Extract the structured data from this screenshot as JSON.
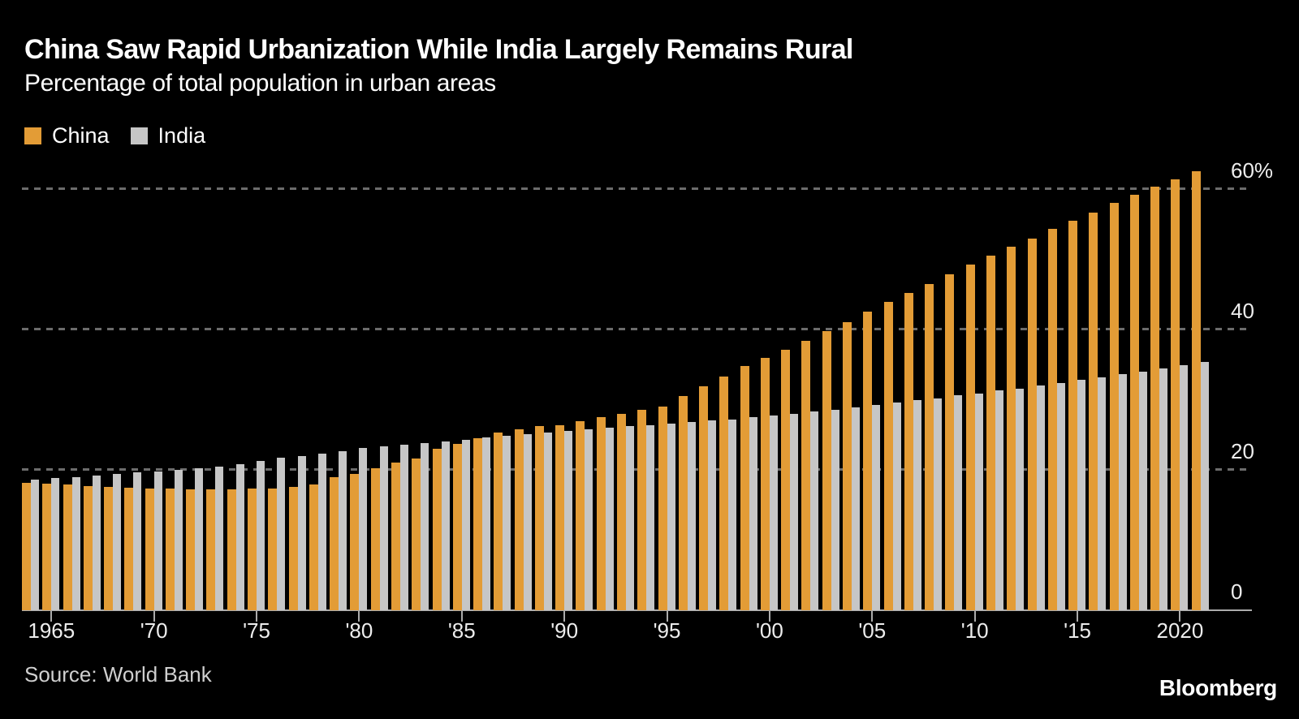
{
  "header": {
    "title": "China Saw Rapid Urbanization While India Largely Remains Rural",
    "subtitle": "Percentage of total population in urban areas"
  },
  "legend": {
    "items": [
      {
        "label": "China",
        "color": "#E39C36"
      },
      {
        "label": "India",
        "color": "#C6C6C6"
      }
    ]
  },
  "footer": {
    "source": "Source: World Bank",
    "brand": "Bloomberg"
  },
  "chart_data": {
    "type": "bar",
    "title": "China Saw Rapid Urbanization While India Largely Remains Rural",
    "subtitle": "Percentage of total population in urban areas",
    "ylabel": "Percent of total population in urban areas",
    "ylim": [
      0,
      65
    ],
    "grid": "horizontal dashed lines at 20, 40, 60; solid baseline at 0",
    "legend_position": "top-left",
    "years": [
      1964,
      1965,
      1966,
      1967,
      1968,
      1969,
      1970,
      1971,
      1972,
      1973,
      1974,
      1975,
      1976,
      1977,
      1978,
      1979,
      1980,
      1981,
      1982,
      1983,
      1984,
      1985,
      1986,
      1987,
      1988,
      1989,
      1990,
      1991,
      1992,
      1993,
      1994,
      1995,
      1996,
      1997,
      1998,
      1999,
      2000,
      2001,
      2002,
      2003,
      2004,
      2005,
      2006,
      2007,
      2008,
      2009,
      2010,
      2011,
      2012,
      2013,
      2014,
      2015,
      2016,
      2017,
      2018,
      2019,
      2020,
      2021
    ],
    "series": [
      {
        "name": "China",
        "color": "#E39C36",
        "values": [
          18.2,
          18.0,
          17.9,
          17.7,
          17.6,
          17.5,
          17.4,
          17.3,
          17.2,
          17.2,
          17.2,
          17.3,
          17.4,
          17.6,
          17.9,
          19.0,
          19.4,
          20.2,
          21.1,
          21.6,
          23.0,
          23.7,
          24.5,
          25.3,
          25.8,
          26.2,
          26.4,
          26.9,
          27.5,
          28.0,
          28.5,
          29.0,
          30.5,
          31.9,
          33.3,
          34.8,
          35.9,
          37.1,
          38.4,
          39.8,
          41.1,
          42.5,
          43.9,
          45.2,
          46.5,
          47.9,
          49.2,
          50.5,
          51.8,
          53.0,
          54.3,
          55.5,
          56.7,
          58.0,
          59.2,
          60.3,
          61.4,
          62.5
        ]
      },
      {
        "name": "India",
        "color": "#C6C6C6",
        "values": [
          18.6,
          18.8,
          19.0,
          19.2,
          19.4,
          19.6,
          19.8,
          20.0,
          20.2,
          20.5,
          20.8,
          21.3,
          21.7,
          22.0,
          22.3,
          22.7,
          23.1,
          23.3,
          23.6,
          23.8,
          24.1,
          24.3,
          24.6,
          24.8,
          25.1,
          25.3,
          25.5,
          25.8,
          26.0,
          26.2,
          26.4,
          26.6,
          26.8,
          27.0,
          27.2,
          27.5,
          27.7,
          28.0,
          28.3,
          28.6,
          28.9,
          29.2,
          29.6,
          29.9,
          30.2,
          30.6,
          30.9,
          31.3,
          31.6,
          32.0,
          32.4,
          32.8,
          33.2,
          33.6,
          34.0,
          34.5,
          34.9,
          35.4
        ]
      }
    ],
    "yticks": [
      {
        "value": 0,
        "label": "0"
      },
      {
        "value": 20,
        "label": "20"
      },
      {
        "value": 40,
        "label": "40"
      },
      {
        "value": 60,
        "label": "60%"
      }
    ],
    "xticks": [
      {
        "year": 1965,
        "label": "1965"
      },
      {
        "year": 1970,
        "label": "'70"
      },
      {
        "year": 1975,
        "label": "'75"
      },
      {
        "year": 1980,
        "label": "'80"
      },
      {
        "year": 1985,
        "label": "'85"
      },
      {
        "year": 1990,
        "label": "'90"
      },
      {
        "year": 1995,
        "label": "'95"
      },
      {
        "year": 2000,
        "label": "'00"
      },
      {
        "year": 2005,
        "label": "'05"
      },
      {
        "year": 2010,
        "label": "'10"
      },
      {
        "year": 2015,
        "label": "'15"
      },
      {
        "year": 2020,
        "label": "2020"
      }
    ]
  }
}
